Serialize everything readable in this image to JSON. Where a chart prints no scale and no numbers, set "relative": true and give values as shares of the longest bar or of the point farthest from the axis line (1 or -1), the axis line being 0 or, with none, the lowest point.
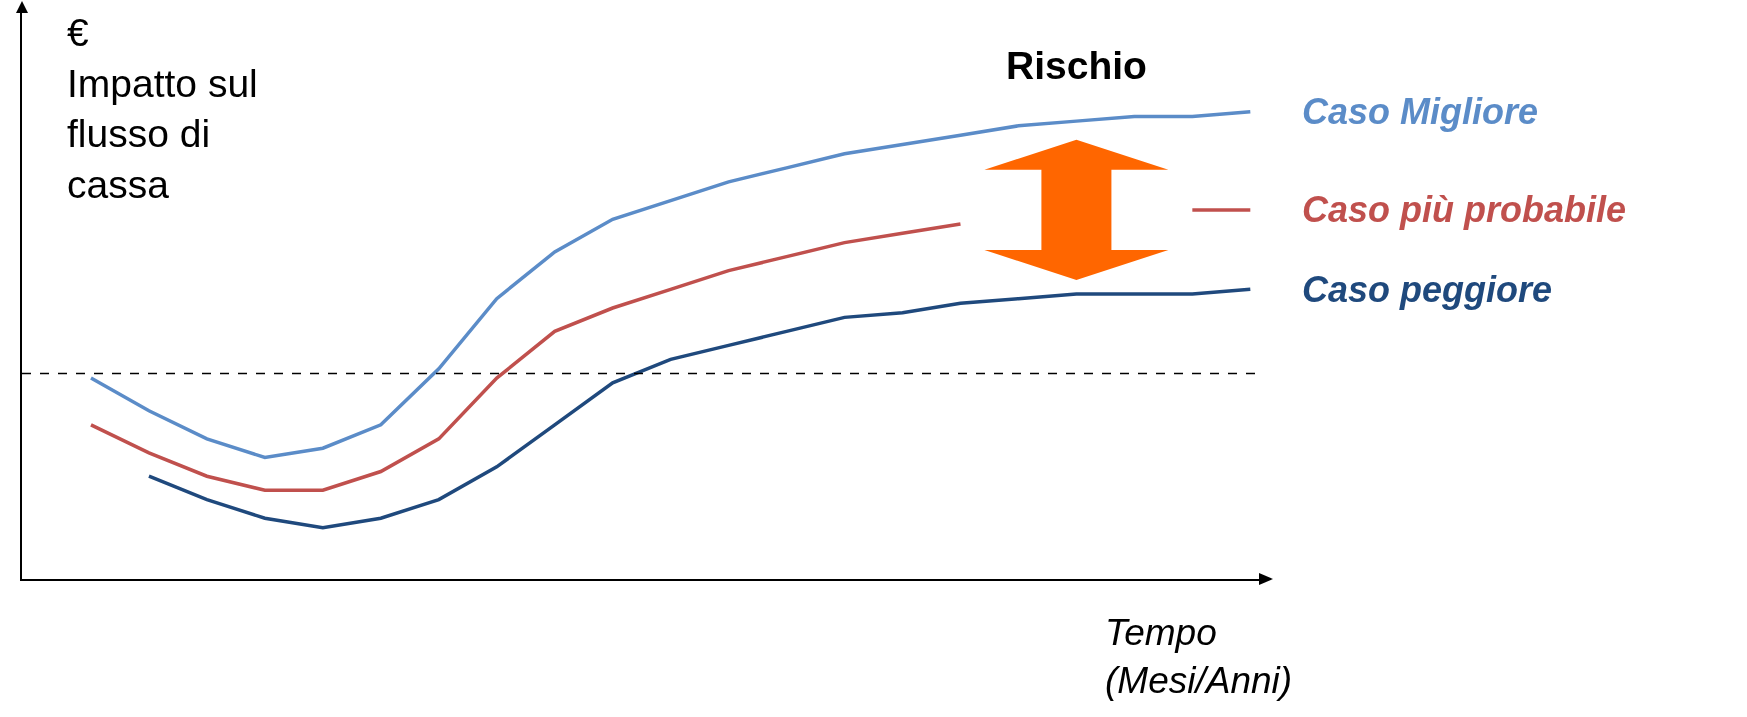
{
  "chart_data": {
    "type": "line",
    "relative": true,
    "ylabel": "€\nImpatto sul\nflusso di\ncassa",
    "xlabel": "Tempo\n(Mesi/Anni)",
    "annotations": [
      "Rischio"
    ],
    "categories": [
      null,
      null,
      null,
      null,
      null,
      null,
      null,
      null,
      null,
      null,
      null,
      null,
      null,
      null,
      null,
      null,
      null,
      null,
      null,
      null,
      null
    ],
    "series": [
      {
        "name": "Caso Migliore",
        "color": "#5b8cc8",
        "values": [
          0.43,
          0.36,
          0.3,
          0.26,
          0.28,
          0.33,
          0.45,
          0.6,
          0.7,
          0.77,
          0.81,
          0.85,
          0.88,
          0.91,
          0.93,
          0.95,
          0.97,
          0.98,
          0.99,
          0.99,
          1
        ]
      },
      {
        "name": "Caso più probabile",
        "color": "#c0504d",
        "values": [
          0.33,
          0.27,
          0.22,
          0.19,
          0.19,
          0.23,
          0.3,
          0.43,
          0.53,
          0.58,
          0.62,
          0.66,
          0.69,
          0.72,
          0.74,
          0.76,
          null,
          null,
          null,
          0.79,
          0.79
        ]
      },
      {
        "name": "Caso peggiore",
        "color": "#1f497d",
        "values": [
          null,
          0.22,
          0.17,
          0.13,
          0.11,
          0.13,
          0.17,
          0.24,
          0.33,
          0.42,
          0.47,
          0.5,
          0.53,
          0.56,
          0.57,
          0.59,
          0.6,
          0.61,
          0.61,
          0.61,
          0.62
        ]
      }
    ],
    "ref_lines": [
      {
        "axis": "y",
        "value": 0.44,
        "color": "#000000",
        "line_style": "dashed"
      }
    ],
    "legend": false,
    "marker": "none",
    "line_style": "solid"
  }
}
